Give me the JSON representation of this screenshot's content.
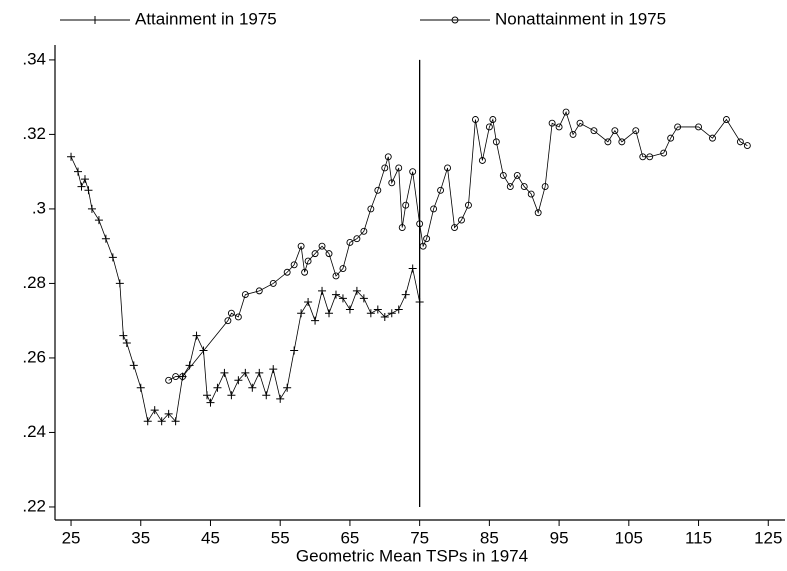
{
  "chart_data": {
    "type": "line",
    "x_label": "Geometric Mean TSPs in 1974",
    "xlim": [
      22.7,
      127.4
    ],
    "xticks": [
      25,
      35,
      45,
      55,
      65,
      75,
      85,
      95,
      105,
      115,
      125
    ],
    "ylim": [
      0.2165,
      0.344
    ],
    "yticks": [
      {
        "value": 0.22,
        "label": ".22"
      },
      {
        "value": 0.24,
        "label": ".24"
      },
      {
        "value": 0.26,
        "label": ".26"
      },
      {
        "value": 0.28,
        "label": ".28"
      },
      {
        "value": 0.3,
        "label": ".3"
      },
      {
        "value": 0.32,
        "label": ".32"
      },
      {
        "value": 0.34,
        "label": ".34"
      }
    ],
    "vline": {
      "x": 75,
      "y": [
        0.22,
        0.34
      ]
    },
    "series": [
      {
        "name": "Attainment in 1975",
        "color": "#000000",
        "marker": "plus",
        "x": [
          25,
          26,
          26.5,
          27,
          27.5,
          28,
          29,
          30,
          31,
          32,
          32.5,
          33,
          34,
          35,
          36,
          37,
          38,
          39,
          40,
          41,
          42,
          43,
          44,
          44.5,
          45,
          46,
          47,
          48,
          49,
          50,
          51,
          52,
          53,
          54,
          55,
          56,
          57,
          58,
          59,
          60,
          61,
          62,
          63,
          64,
          65,
          66,
          67,
          68,
          69,
          70,
          71,
          72,
          73,
          74,
          75
        ],
        "values": [
          0.314,
          0.31,
          0.306,
          0.308,
          0.305,
          0.3,
          0.297,
          0.292,
          0.287,
          0.28,
          0.266,
          0.264,
          0.258,
          0.252,
          0.243,
          0.246,
          0.243,
          0.245,
          0.243,
          0.255,
          0.258,
          0.266,
          0.262,
          0.25,
          0.248,
          0.252,
          0.256,
          0.25,
          0.254,
          0.256,
          0.252,
          0.256,
          0.25,
          0.257,
          0.249,
          0.252,
          0.262,
          0.272,
          0.275,
          0.27,
          0.278,
          0.272,
          0.277,
          0.276,
          0.273,
          0.278,
          0.276,
          0.272,
          0.273,
          0.271,
          0.272,
          0.273,
          0.277,
          0.284,
          0.275
        ]
      },
      {
        "name": "Nonattainment in 1975",
        "color": "#000000",
        "marker": "circle",
        "x": [
          39,
          40,
          41,
          47.5,
          48,
          49,
          50,
          52,
          54,
          56,
          57,
          58,
          58.5,
          59,
          60,
          61,
          62,
          63,
          64,
          65,
          66,
          67,
          68,
          69,
          70,
          70.5,
          71,
          72,
          72.5,
          73,
          74,
          75,
          75.5,
          76,
          77,
          78,
          79,
          80,
          81,
          82,
          83,
          84,
          85,
          85.5,
          86,
          87,
          88,
          89,
          90,
          91,
          92,
          93,
          94,
          95,
          96,
          97,
          98,
          100,
          102,
          103,
          104,
          106,
          107,
          108,
          110,
          111,
          112,
          115,
          117,
          119,
          121,
          122
        ],
        "values": [
          0.254,
          0.255,
          0.255,
          0.27,
          0.272,
          0.271,
          0.277,
          0.278,
          0.28,
          0.283,
          0.285,
          0.29,
          0.283,
          0.286,
          0.288,
          0.29,
          0.288,
          0.282,
          0.284,
          0.291,
          0.292,
          0.294,
          0.3,
          0.305,
          0.311,
          0.314,
          0.307,
          0.311,
          0.295,
          0.301,
          0.31,
          0.296,
          0.29,
          0.292,
          0.3,
          0.305,
          0.311,
          0.295,
          0.297,
          0.301,
          0.324,
          0.313,
          0.322,
          0.324,
          0.318,
          0.309,
          0.306,
          0.309,
          0.306,
          0.304,
          0.299,
          0.306,
          0.323,
          0.322,
          0.326,
          0.32,
          0.323,
          0.321,
          0.318,
          0.321,
          0.318,
          0.321,
          0.314,
          0.314,
          0.315,
          0.319,
          0.322,
          0.322,
          0.319,
          0.324,
          0.318,
          0.317
        ]
      }
    ]
  }
}
